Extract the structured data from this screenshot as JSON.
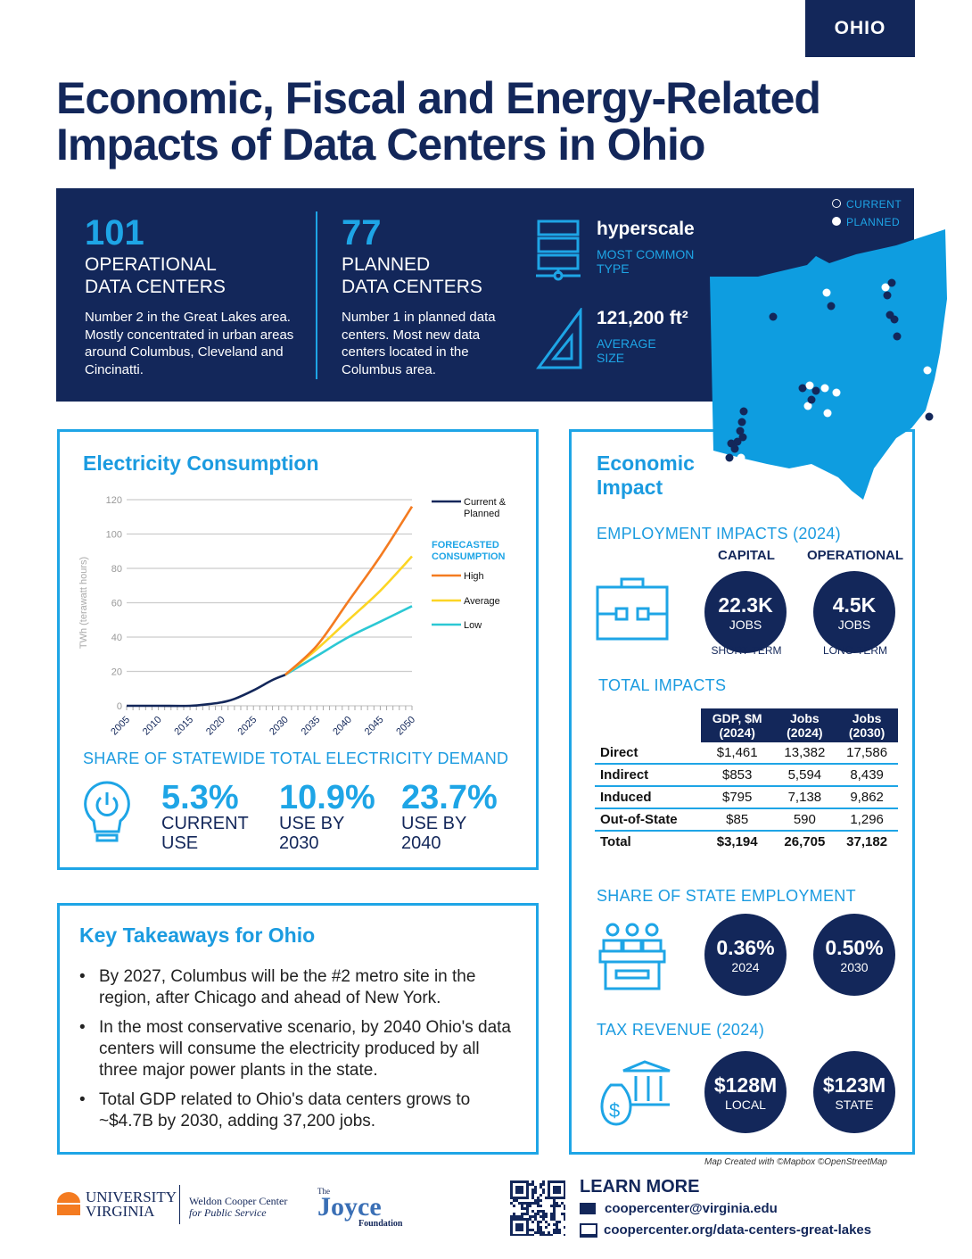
{
  "tab": "OHIO",
  "title": [
    "Economic, Fiscal and Energy-Related",
    "Impacts of Data Centers in Ohio"
  ],
  "banner": {
    "operational": {
      "num": "101",
      "head1": "OPERATIONAL",
      "head2": "DATA CENTERS",
      "desc": "Number 2 in the Great Lakes area. Mostly concentrated in urban areas around Columbus, Cleveland and Cincinatti."
    },
    "planned": {
      "num": "77",
      "head1": "PLANNED",
      "head2": "DATA CENTERS",
      "desc": "Number 1 in planned data centers. Most new data centers located in the Columbus area."
    },
    "type": {
      "value": "hyperscale",
      "label1": "MOST COMMON",
      "label2": "TYPE"
    },
    "size": {
      "value": "121,200 ft²",
      "label1": "AVERAGE",
      "label2": "SIZE"
    },
    "legend": {
      "current": "CURRENT",
      "planned": "PLANNED"
    }
  },
  "electricity": {
    "title": "Electricity Consumption",
    "share_title": "SHARE OF STATEWIDE TOTAL ELECTRICITY DEMAND",
    "shares": [
      {
        "value": "5.3%",
        "l1": "CURRENT",
        "l2": "USE"
      },
      {
        "value": "10.9%",
        "l1": "USE BY",
        "l2": "2030"
      },
      {
        "value": "23.7%",
        "l1": "USE BY",
        "l2": "2040"
      }
    ]
  },
  "chart_data": {
    "type": "line",
    "ylabel": "TWh (terawatt hours)",
    "ylim": [
      0,
      120
    ],
    "yticks": [
      "0",
      "20",
      "40",
      "60",
      "80",
      "100",
      "120"
    ],
    "xticks": [
      "2005",
      "2010",
      "2015",
      "2020",
      "2025",
      "2030",
      "2035",
      "2040",
      "2045",
      "2050"
    ],
    "legend_forecast_title": "FORECASTED CONSUMPTION",
    "series": [
      {
        "name": "Current & Planned",
        "color": "#13275a",
        "x": [
          2005,
          2010,
          2015,
          2018,
          2020,
          2022,
          2025,
          2028,
          2030
        ],
        "y": [
          0,
          0,
          0,
          1,
          2,
          4,
          9,
          15,
          18
        ]
      },
      {
        "name": "High",
        "color": "#f47b20",
        "x": [
          2030,
          2035,
          2040,
          2045,
          2050
        ],
        "y": [
          18,
          35,
          61,
          87,
          116
        ]
      },
      {
        "name": "Average",
        "color": "#fcd524",
        "x": [
          2030,
          2035,
          2040,
          2045,
          2050
        ],
        "y": [
          18,
          33,
          50,
          67,
          87
        ]
      },
      {
        "name": "Low",
        "color": "#2cc8d4",
        "x": [
          2030,
          2035,
          2040,
          2045,
          2050
        ],
        "y": [
          18,
          29,
          40,
          49,
          58
        ]
      }
    ]
  },
  "economic": {
    "title1": "Economic",
    "title2": "Impact",
    "employment_title": "EMPLOYMENT IMPACTS (2024)",
    "capital": {
      "arc": "CAPITAL",
      "value": "22.3K",
      "unit": "JOBS",
      "bottom": "SHORT-TERM"
    },
    "operational": {
      "arc": "OPERATIONAL",
      "value": "4.5K",
      "unit": "JOBS",
      "bottom": "LONG-TERM"
    },
    "total_title": "TOTAL IMPACTS",
    "table": {
      "headers": [
        [
          "GDP, $M",
          "(2024)"
        ],
        [
          "Jobs",
          "(2024)"
        ],
        [
          "Jobs",
          "(2030)"
        ]
      ],
      "rows": [
        [
          "Direct",
          "$1,461",
          "13,382",
          "17,586"
        ],
        [
          "Indirect",
          "$853",
          "5,594",
          "8,439"
        ],
        [
          "Induced",
          "$795",
          "7,138",
          "9,862"
        ],
        [
          "Out-of-State",
          "$85",
          "590",
          "1,296"
        ],
        [
          "Total",
          "$3,194",
          "26,705",
          "37,182"
        ]
      ]
    },
    "share_title": "SHARE OF STATE EMPLOYMENT",
    "share": [
      {
        "value": "0.36%",
        "year": "2024"
      },
      {
        "value": "0.50%",
        "year": "2030"
      }
    ],
    "tax_title": "TAX REVENUE (2024)",
    "tax": [
      {
        "value": "$128M",
        "label": "LOCAL"
      },
      {
        "value": "$123M",
        "label": "STATE"
      }
    ]
  },
  "takeaways": {
    "title": "Key Takeaways for Ohio",
    "items": [
      "By 2027, Columbus will be the #2 metro site in the region, after Chicago and ahead of New York.",
      "In the most conservative scenario, by 2040 Ohio's data centers will consume the electricity produced by all three major power plants in the state.",
      "Total GDP related to Ohio's data centers grows to ~$4.7B by 2030, adding 37,200 jobs."
    ]
  },
  "map_credit": "Map Created with ©Mapbox ©OpenStreetMap",
  "footer": {
    "uva1": "UNIVERSITY",
    "uva2": "VIRGINIA",
    "wc1": "Weldon Cooper Center",
    "wc2": "for Public Service",
    "joyce_the": "The",
    "joyce": "Joyce",
    "joyce_f": "Foundation",
    "learn": "LEARN MORE",
    "email": "coopercenter@virginia.edu",
    "url": "coopercenter.org/data-centers-great-lakes"
  }
}
